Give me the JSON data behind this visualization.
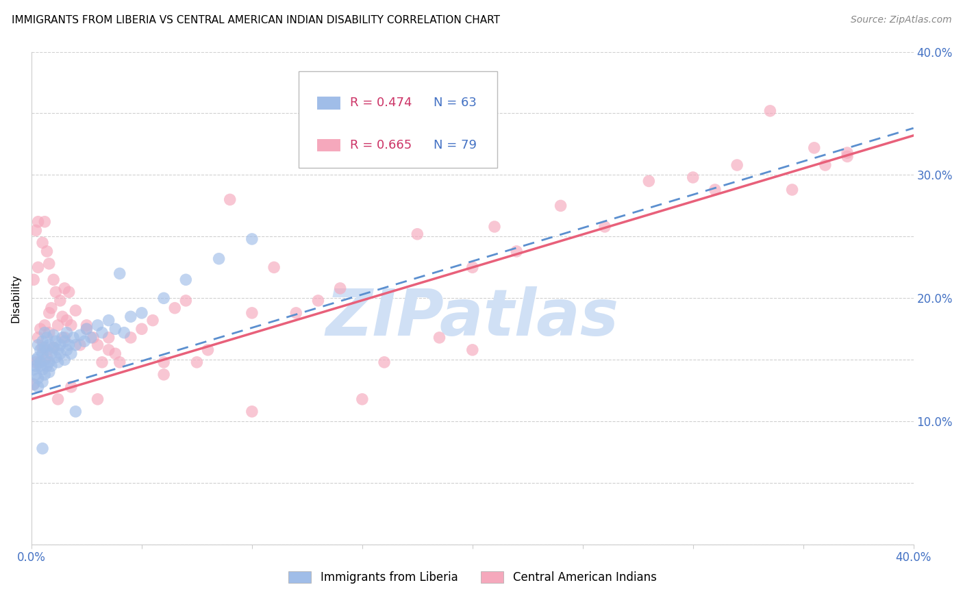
{
  "title": "IMMIGRANTS FROM LIBERIA VS CENTRAL AMERICAN INDIAN DISABILITY CORRELATION CHART",
  "source": "Source: ZipAtlas.com",
  "ylabel": "Disability",
  "xlim": [
    0.0,
    0.4
  ],
  "ylim": [
    0.0,
    0.4
  ],
  "xtick_positions": [
    0.0,
    0.05,
    0.1,
    0.15,
    0.2,
    0.25,
    0.3,
    0.35,
    0.4
  ],
  "xtick_labels": [
    "0.0%",
    "",
    "",
    "",
    "",
    "",
    "",
    "",
    "40.0%"
  ],
  "ytick_positions": [
    0.0,
    0.05,
    0.1,
    0.15,
    0.2,
    0.25,
    0.3,
    0.35,
    0.4
  ],
  "ytick_labels": [
    "",
    "",
    "10.0%",
    "",
    "20.0%",
    "",
    "30.0%",
    "",
    "40.0%"
  ],
  "blue_R": 0.474,
  "blue_N": 63,
  "pink_R": 0.665,
  "pink_N": 79,
  "blue_color": "#a0bde8",
  "pink_color": "#f5a8bc",
  "blue_line_color": "#5b8fcf",
  "pink_line_color": "#e8607a",
  "blue_label": "Immigrants from Liberia",
  "pink_label": "Central American Indians",
  "watermark": "ZIPatlas",
  "watermark_color": "#d0e0f5",
  "grid_color": "#d0d0d0",
  "axis_color": "#4472c4",
  "title_fontsize": 11,
  "blue_x": [
    0.001,
    0.001,
    0.002,
    0.002,
    0.002,
    0.003,
    0.003,
    0.003,
    0.003,
    0.004,
    0.004,
    0.004,
    0.005,
    0.005,
    0.005,
    0.005,
    0.006,
    0.006,
    0.006,
    0.006,
    0.007,
    0.007,
    0.007,
    0.008,
    0.008,
    0.008,
    0.009,
    0.009,
    0.01,
    0.01,
    0.011,
    0.011,
    0.012,
    0.012,
    0.013,
    0.013,
    0.014,
    0.015,
    0.015,
    0.016,
    0.016,
    0.017,
    0.018,
    0.019,
    0.02,
    0.022,
    0.024,
    0.025,
    0.027,
    0.03,
    0.032,
    0.035,
    0.038,
    0.042,
    0.045,
    0.05,
    0.06,
    0.07,
    0.085,
    0.1,
    0.04,
    0.02,
    0.005
  ],
  "blue_y": [
    0.13,
    0.142,
    0.138,
    0.15,
    0.145,
    0.128,
    0.152,
    0.162,
    0.135,
    0.148,
    0.158,
    0.145,
    0.132,
    0.155,
    0.165,
    0.142,
    0.15,
    0.16,
    0.138,
    0.172,
    0.145,
    0.158,
    0.168,
    0.148,
    0.162,
    0.14,
    0.155,
    0.145,
    0.16,
    0.17,
    0.152,
    0.165,
    0.158,
    0.148,
    0.162,
    0.155,
    0.168,
    0.15,
    0.165,
    0.158,
    0.172,
    0.162,
    0.155,
    0.168,
    0.162,
    0.17,
    0.165,
    0.175,
    0.168,
    0.178,
    0.172,
    0.182,
    0.175,
    0.172,
    0.185,
    0.188,
    0.2,
    0.215,
    0.232,
    0.248,
    0.22,
    0.108,
    0.078
  ],
  "pink_x": [
    0.001,
    0.001,
    0.002,
    0.002,
    0.003,
    0.003,
    0.004,
    0.005,
    0.005,
    0.006,
    0.006,
    0.007,
    0.007,
    0.008,
    0.008,
    0.009,
    0.01,
    0.01,
    0.011,
    0.012,
    0.013,
    0.014,
    0.015,
    0.016,
    0.017,
    0.018,
    0.02,
    0.022,
    0.025,
    0.028,
    0.03,
    0.032,
    0.035,
    0.038,
    0.04,
    0.045,
    0.05,
    0.055,
    0.06,
    0.065,
    0.07,
    0.075,
    0.08,
    0.09,
    0.1,
    0.11,
    0.12,
    0.13,
    0.14,
    0.16,
    0.175,
    0.185,
    0.2,
    0.21,
    0.22,
    0.24,
    0.26,
    0.28,
    0.3,
    0.32,
    0.335,
    0.345,
    0.355,
    0.36,
    0.37,
    0.003,
    0.008,
    0.015,
    0.025,
    0.035,
    0.012,
    0.018,
    0.03,
    0.06,
    0.1,
    0.15,
    0.2,
    0.31,
    0.37
  ],
  "pink_y": [
    0.13,
    0.215,
    0.148,
    0.255,
    0.168,
    0.225,
    0.175,
    0.16,
    0.245,
    0.178,
    0.262,
    0.152,
    0.238,
    0.172,
    0.228,
    0.192,
    0.16,
    0.215,
    0.205,
    0.178,
    0.198,
    0.185,
    0.168,
    0.182,
    0.205,
    0.178,
    0.19,
    0.162,
    0.175,
    0.168,
    0.162,
    0.148,
    0.168,
    0.155,
    0.148,
    0.168,
    0.175,
    0.182,
    0.148,
    0.192,
    0.198,
    0.148,
    0.158,
    0.28,
    0.188,
    0.225,
    0.188,
    0.198,
    0.208,
    0.148,
    0.252,
    0.168,
    0.225,
    0.258,
    0.238,
    0.275,
    0.258,
    0.295,
    0.298,
    0.308,
    0.352,
    0.288,
    0.322,
    0.308,
    0.315,
    0.262,
    0.188,
    0.208,
    0.178,
    0.158,
    0.118,
    0.128,
    0.118,
    0.138,
    0.108,
    0.118,
    0.158,
    0.288,
    0.318
  ],
  "blue_trend_x0": 0.0,
  "blue_trend_x1": 0.4,
  "blue_trend_y0": 0.122,
  "blue_trend_y1": 0.338,
  "pink_trend_x0": 0.0,
  "pink_trend_x1": 0.4,
  "pink_trend_y0": 0.118,
  "pink_trend_y1": 0.332
}
